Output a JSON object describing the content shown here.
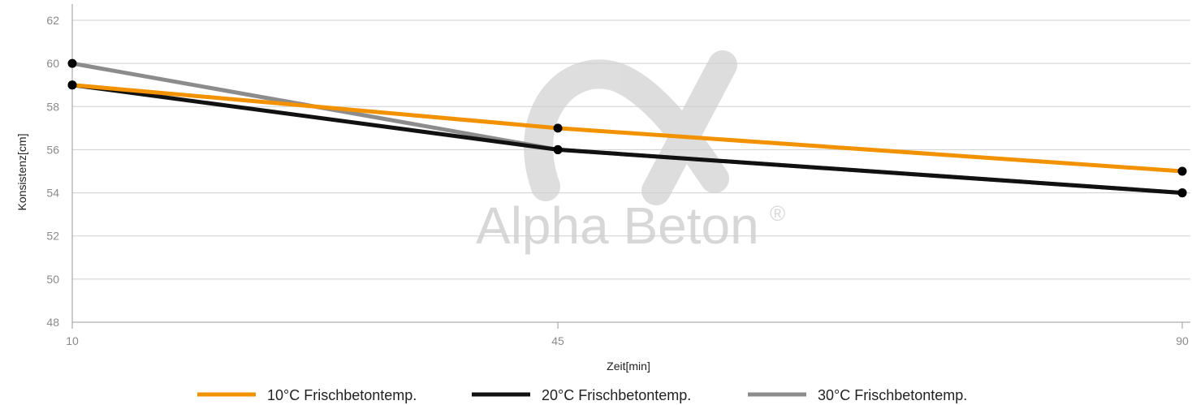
{
  "watermark": {
    "text": "Alpha Beton",
    "mark": "®",
    "logo_icon": "alpha-logo-icon"
  },
  "chart_data": {
    "type": "line",
    "xlabel": "Zeit[min]",
    "ylabel": "Konsistenz[cm]",
    "x": [
      10,
      45,
      90
    ],
    "x_tick_labels": [
      "10",
      "45",
      "90"
    ],
    "ylim": [
      48,
      62
    ],
    "y_ticks": [
      48,
      50,
      52,
      54,
      56,
      58,
      60,
      62
    ],
    "grid": true,
    "legend_position": "bottom",
    "series": [
      {
        "name": "10°C Frischbetontemp.",
        "color": "#f39200",
        "values": [
          59,
          57,
          55
        ]
      },
      {
        "name": "20°C Frischbetontemp.",
        "color": "#111111",
        "values": [
          59,
          56,
          54
        ]
      },
      {
        "name": "30°C Frischbetontemp.",
        "color": "#8c8c8c",
        "values": [
          60,
          56,
          54
        ]
      }
    ],
    "marker_color": "#000000"
  }
}
